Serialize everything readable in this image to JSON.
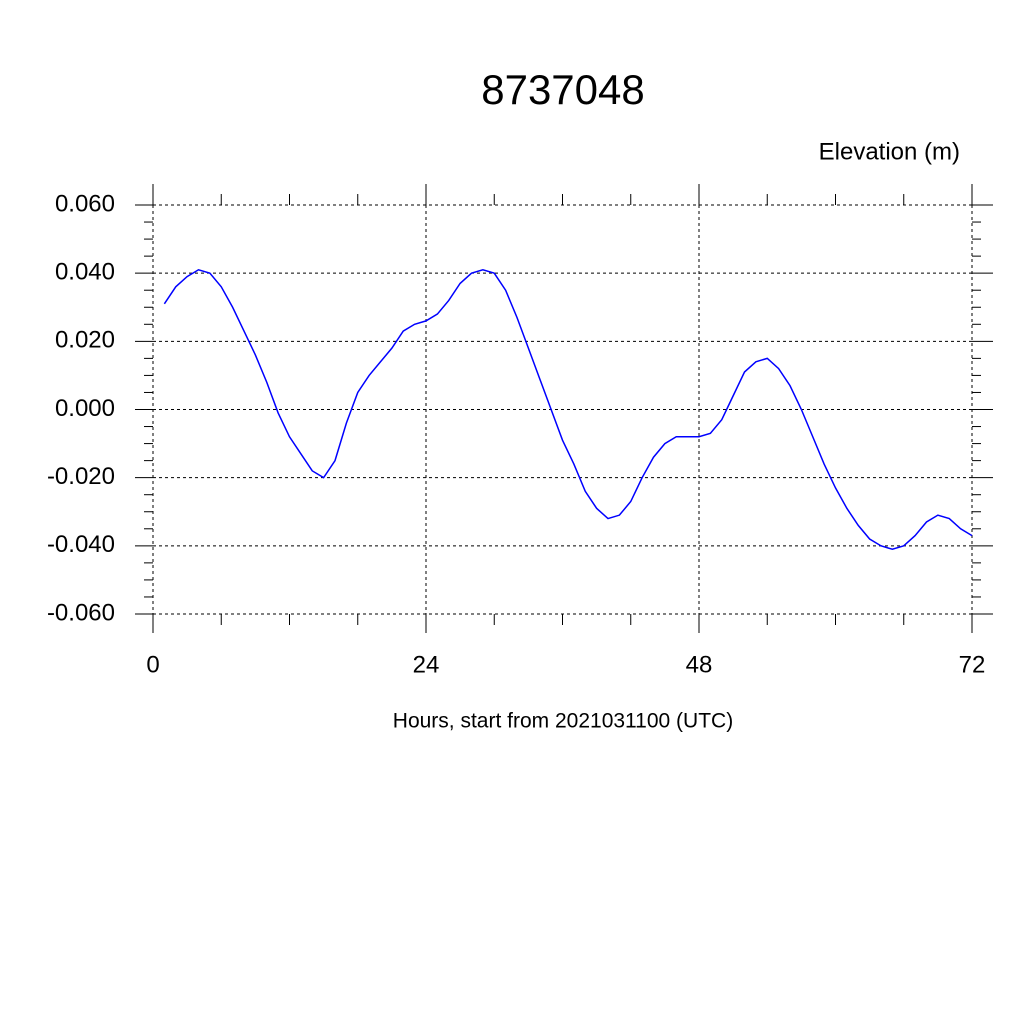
{
  "chart_data": {
    "type": "line",
    "title": "8737048",
    "subtitle": "Elevation (m)",
    "x_label": "Hours, start from 2021031100 (UTC)",
    "x": [
      1,
      2,
      3,
      4,
      5,
      6,
      7,
      8,
      9,
      10,
      11,
      12,
      13,
      14,
      15,
      16,
      17,
      18,
      19,
      20,
      21,
      22,
      23,
      24,
      25,
      26,
      27,
      28,
      29,
      30,
      31,
      32,
      33,
      34,
      35,
      36,
      37,
      38,
      39,
      40,
      41,
      42,
      43,
      44,
      45,
      46,
      47,
      48,
      49,
      50,
      51,
      52,
      53,
      54,
      55,
      56,
      57,
      58,
      59,
      60,
      61,
      62,
      63,
      64,
      65,
      66,
      67,
      68,
      69,
      70,
      71,
      72
    ],
    "series": [
      {
        "name": "Elevation",
        "color": "#0000ff",
        "values": [
          0.031,
          0.036,
          0.039,
          0.041,
          0.04,
          0.036,
          0.03,
          0.023,
          0.016,
          0.008,
          -0.001,
          -0.008,
          -0.013,
          -0.018,
          -0.02,
          -0.015,
          -0.004,
          0.005,
          0.01,
          0.014,
          0.018,
          0.023,
          0.025,
          0.026,
          0.028,
          0.032,
          0.037,
          0.04,
          0.041,
          0.04,
          0.035,
          0.027,
          0.018,
          0.009,
          0.0,
          -0.009,
          -0.016,
          -0.024,
          -0.029,
          -0.032,
          -0.031,
          -0.027,
          -0.02,
          -0.014,
          -0.01,
          -0.008,
          -0.008,
          -0.008,
          -0.007,
          -0.003,
          0.004,
          0.011,
          0.014,
          0.015,
          0.012,
          0.007,
          0.0,
          -0.008,
          -0.016,
          -0.023,
          -0.029,
          -0.034,
          -0.038,
          -0.04,
          -0.041,
          -0.04,
          -0.037,
          -0.033,
          -0.031,
          -0.032,
          -0.035,
          -0.037
        ]
      }
    ],
    "xlim": [
      0,
      72
    ],
    "xticks": [
      0,
      24,
      48,
      72
    ],
    "ylim": [
      -0.06,
      0.06
    ],
    "yticks": [
      {
        "value": -0.06,
        "label": "-0.060"
      },
      {
        "value": -0.04,
        "label": "-0.040"
      },
      {
        "value": -0.02,
        "label": "-0.020"
      },
      {
        "value": 0,
        "label": "0.000"
      },
      {
        "value": 0.02,
        "label": "0.020"
      },
      {
        "value": 0.04,
        "label": "0.040"
      },
      {
        "value": 0.06,
        "label": "0.060"
      }
    ],
    "grid": true
  }
}
